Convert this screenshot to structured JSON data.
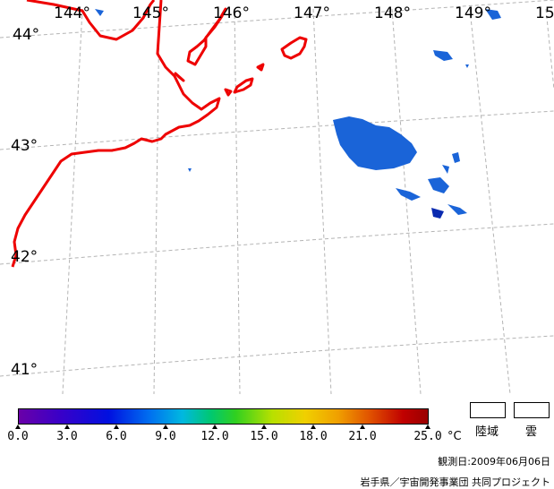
{
  "map": {
    "lon_labels": [
      "144°",
      "145°",
      "146°",
      "147°",
      "148°",
      "149°",
      "15"
    ],
    "lat_labels": [
      "44°",
      "43°",
      "42°",
      "41°"
    ],
    "coast_color": "#ee0000",
    "sst_color": "#1a64d8",
    "grid_color": "#b4b4b4"
  },
  "legend": {
    "ticks": [
      "0.0",
      "3.0",
      "6.0",
      "9.0",
      "12.0",
      "15.0",
      "18.0",
      "21.0",
      "25.0"
    ],
    "unit": "°C",
    "land_label": "陸域",
    "cloud_label": "雲"
  },
  "footer": {
    "observed": "観測日:2009年06月06日",
    "credit": "岩手県／宇宙開発事業団 共同プロジェクト"
  }
}
